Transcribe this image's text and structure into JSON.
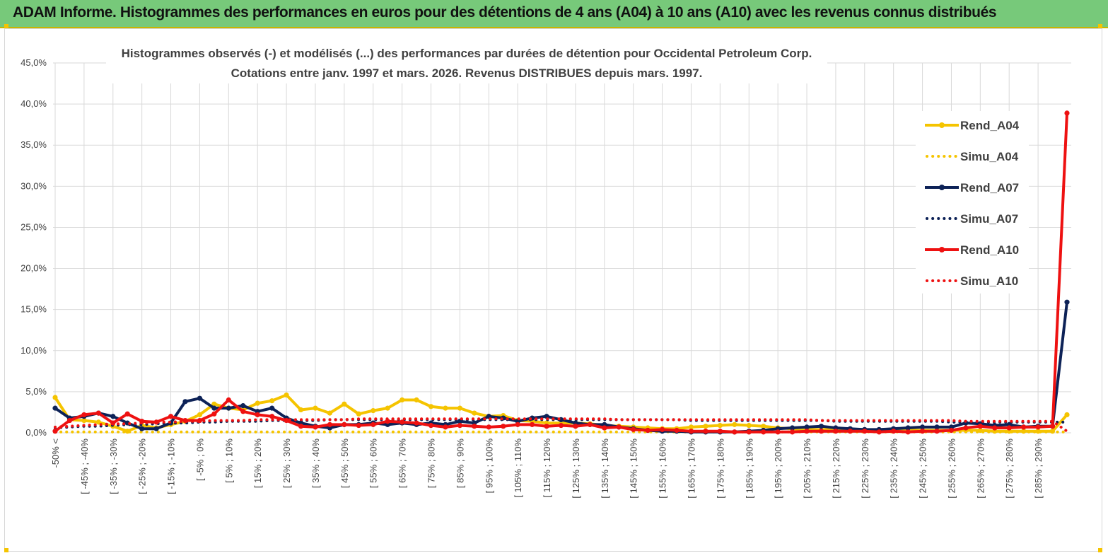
{
  "header": {
    "title": "ADAM Informe. Histogrammes des performances en euros pour des détentions de 4 ans (A04) à 10 ans (A10) avec les revenus connus distribués"
  },
  "chart_data": {
    "type": "line",
    "title_line1": "Histogrammes observés (-) et modélisés (...) des performances par durées de détention pour Occidental Petroleum Corp.",
    "title_line2": "Cotations entre janv. 1997 et mars. 2026.  Revenus DISTRIBUES depuis mars. 1997.",
    "y_ticks": [
      "0,0%",
      "5,0%",
      "10,0%",
      "15,0%",
      "20,0%",
      "25,0%",
      "30,0%",
      "35,0%",
      "40,0%",
      "45,0%"
    ],
    "ylim": [
      0,
      45
    ],
    "grid": true,
    "legend_position": "right",
    "x_ticks": [
      "-50% <",
      "[ -45% ; -40%",
      "[ -35% ; -30%",
      "[ -25% ; -20%",
      "[ -15% ; -10%",
      "[ -5% ; 0%",
      "[ 5% ; 10%",
      "[ 15% ; 20%",
      "[ 25% ; 30%",
      "[ 35% ; 40%",
      "[ 45% ; 50%",
      "[ 55% ; 60%",
      "[ 65% ; 70%",
      "[ 75% ; 80%",
      "[ 85% ; 90%",
      "[ 95% ; 100%",
      "[ 105% ; 110%",
      "[ 115% ; 120%",
      "[ 125% ; 130%",
      "[ 135% ; 140%",
      "[ 145% ; 150%",
      "[ 155% ; 160%",
      "[ 165% ; 170%",
      "[ 175% ; 180%",
      "[ 185% ; 190%",
      "[ 195% ; 200%",
      "[ 205% ; 210%",
      "[ 215% ; 220%",
      "[ 225% ; 230%",
      "[ 235% ; 240%",
      "[ 245% ; 250%",
      "[ 255% ; 260%",
      "[ 265% ; 270%",
      "[ 275% ; 280%",
      "[ 285% ; 290%"
    ],
    "series": [
      {
        "name": "Rend_A04",
        "color": "#f5c400",
        "style": "solid",
        "values": [
          4.3,
          1.6,
          1.5,
          1.3,
          0.8,
          0.2,
          0.9,
          0.6,
          1.0,
          1.4,
          2.2,
          3.5,
          3.0,
          2.8,
          3.6,
          3.9,
          4.6,
          2.8,
          3.0,
          2.4,
          3.5,
          2.3,
          2.7,
          3.0,
          4.0,
          4.0,
          3.2,
          3.0,
          3.0,
          2.4,
          2.0,
          2.1,
          1.5,
          1.4,
          1.2,
          1.2,
          1.2,
          1.1,
          0.9,
          0.8,
          0.7,
          0.6,
          0.5,
          0.5,
          0.7,
          0.8,
          0.9,
          1.0,
          0.9,
          0.8,
          0.6,
          0.5,
          0.4,
          0.4,
          0.4,
          0.4,
          0.3,
          0.3,
          0.3,
          0.3,
          0.3,
          0.3,
          0.3,
          0.3,
          0.3,
          0.2,
          0.2,
          0.2,
          0.2,
          0.2,
          2.2
        ]
      },
      {
        "name": "Simu_A04",
        "color": "#f5c400",
        "style": "dotted",
        "values": [
          0.1,
          0.1,
          0.1,
          0.1,
          0.1,
          0.1,
          0.1,
          0.1,
          0.1,
          0.1,
          0.1,
          0.1,
          0.1,
          0.1,
          0.1,
          0.1,
          0.1,
          0.1,
          0.1,
          0.1,
          0.1,
          0.1,
          0.1,
          0.1,
          0.1,
          0.1,
          0.1,
          0.1,
          0.1,
          0.1,
          0.1,
          0.1,
          0.1,
          0.1,
          0.1,
          0.1,
          0.1,
          0.1,
          0.1,
          0.1,
          0.1,
          0.1,
          0.1,
          0.1,
          0.1,
          0.1,
          0.1,
          0.1,
          0.1,
          0.1,
          0.1,
          0.1,
          0.1,
          0.1,
          0.1,
          0.1,
          0.1,
          0.1,
          0.1,
          0.1,
          0.1,
          0.1,
          0.1,
          0.1,
          0.1,
          0.1,
          0.1,
          0.1,
          0.1,
          0.1,
          0.1
        ]
      },
      {
        "name": "Rend_A07",
        "color": "#0d2257",
        "style": "solid",
        "values": [
          3.0,
          1.8,
          2.0,
          2.4,
          2.0,
          1.2,
          0.5,
          0.5,
          1.2,
          3.8,
          4.2,
          3.0,
          3.0,
          3.3,
          2.6,
          3.0,
          1.8,
          1.2,
          0.8,
          0.6,
          1.0,
          1.0,
          1.2,
          1.0,
          1.2,
          1.0,
          1.2,
          1.0,
          1.4,
          1.2,
          2.0,
          1.8,
          1.4,
          1.8,
          2.0,
          1.6,
          1.2,
          1.0,
          1.0,
          0.7,
          0.5,
          0.3,
          0.2,
          0.2,
          0.1,
          0.1,
          0.1,
          0.1,
          0.2,
          0.3,
          0.5,
          0.6,
          0.7,
          0.8,
          0.6,
          0.5,
          0.4,
          0.4,
          0.5,
          0.6,
          0.7,
          0.7,
          0.7,
          1.2,
          1.1,
          0.9,
          1.0,
          0.7,
          0.8,
          0.8,
          15.9
        ]
      },
      {
        "name": "Simu_A07",
        "color": "#0d2257",
        "style": "dotted",
        "values": [
          0.6,
          0.7,
          0.8,
          0.8,
          0.9,
          1.0,
          1.0,
          1.1,
          1.2,
          1.2,
          1.3,
          1.3,
          1.4,
          1.4,
          1.4,
          1.5,
          1.5,
          1.5,
          1.5,
          1.6,
          1.6,
          1.6,
          1.6,
          1.6,
          1.6,
          1.6,
          1.6,
          1.6,
          1.6,
          1.6,
          1.6,
          1.6,
          1.6,
          1.6,
          1.6,
          1.6,
          1.6,
          1.6,
          1.6,
          1.6,
          1.6,
          1.6,
          1.6,
          1.6,
          1.5,
          1.5,
          1.5,
          1.5,
          1.5,
          1.5,
          1.5,
          1.5,
          1.5,
          1.5,
          1.4,
          1.4,
          1.4,
          1.4,
          1.4,
          1.4,
          1.4,
          1.4,
          1.3,
          1.3,
          1.3,
          1.3,
          1.3,
          1.3,
          1.3,
          1.3,
          1.3
        ]
      },
      {
        "name": "Rend_A10",
        "color": "#ee1111",
        "style": "solid",
        "values": [
          0.2,
          1.5,
          2.2,
          2.4,
          1.2,
          2.3,
          1.4,
          1.3,
          2.0,
          1.5,
          1.5,
          2.3,
          4.0,
          2.6,
          2.2,
          2.0,
          1.5,
          0.8,
          0.7,
          1.0,
          1.0,
          0.9,
          1.0,
          1.4,
          1.3,
          1.2,
          0.9,
          0.7,
          0.9,
          0.8,
          0.7,
          0.8,
          1.0,
          1.0,
          0.8,
          0.9,
          0.8,
          1.0,
          0.6,
          0.7,
          0.4,
          0.3,
          0.4,
          0.3,
          0.2,
          0.2,
          0.2,
          0.1,
          0.1,
          0.1,
          0.1,
          0.1,
          0.2,
          0.2,
          0.2,
          0.2,
          0.2,
          0.1,
          0.2,
          0.1,
          0.2,
          0.2,
          0.3,
          0.6,
          0.8,
          0.6,
          0.6,
          0.7,
          0.7,
          0.8,
          38.9
        ]
      },
      {
        "name": "Simu_A10",
        "color": "#ee1111",
        "style": "dotted",
        "values": [
          0.7,
          0.8,
          0.9,
          1.0,
          1.1,
          1.1,
          1.2,
          1.3,
          1.3,
          1.4,
          1.4,
          1.5,
          1.5,
          1.5,
          1.6,
          1.6,
          1.6,
          1.6,
          1.6,
          1.6,
          1.6,
          1.7,
          1.7,
          1.7,
          1.7,
          1.7,
          1.7,
          1.7,
          1.7,
          1.7,
          1.7,
          1.7,
          1.7,
          1.7,
          1.7,
          1.7,
          1.7,
          1.7,
          1.7,
          1.6,
          1.6,
          1.6,
          1.6,
          1.6,
          1.6,
          1.6,
          1.6,
          1.6,
          1.6,
          1.6,
          1.6,
          1.6,
          1.6,
          1.5,
          1.5,
          1.5,
          1.5,
          1.5,
          1.5,
          1.5,
          1.5,
          1.5,
          1.5,
          1.4,
          1.4,
          1.4,
          1.4,
          1.4,
          1.4,
          1.4,
          0.2
        ]
      }
    ]
  }
}
